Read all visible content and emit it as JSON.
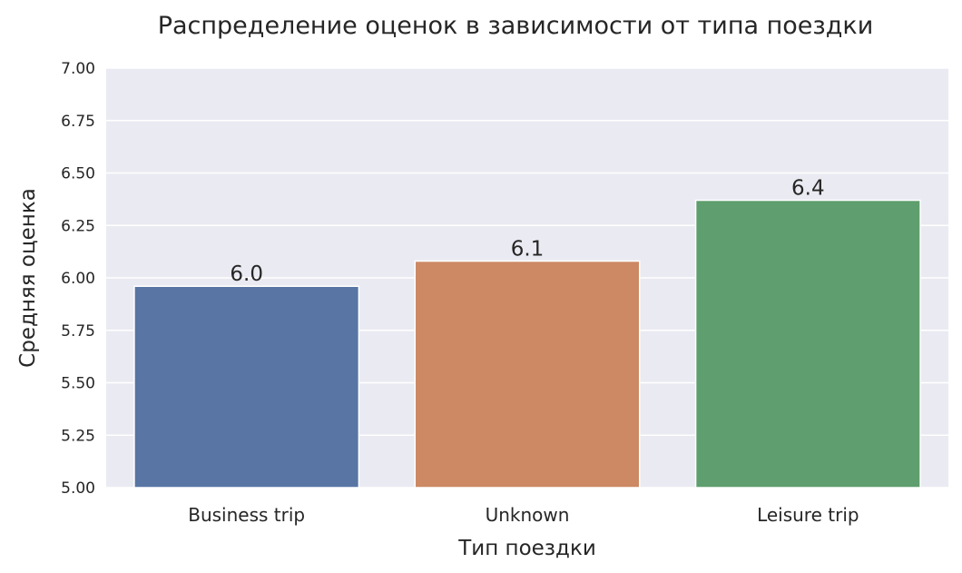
{
  "chart_data": {
    "type": "bar",
    "title": "Распределение оценок в зависимости от типа поездки",
    "xlabel": "Тип поездки",
    "ylabel": "Средняя оценка",
    "categories": [
      "Business trip",
      "Unknown",
      "Leisure trip"
    ],
    "values": [
      5.96,
      6.08,
      6.37
    ],
    "data_labels": [
      "6.0",
      "6.1",
      "6.4"
    ],
    "colors": [
      "#5875a4",
      "#cc8963",
      "#5f9e6e"
    ],
    "ylim": [
      5.0,
      7.0
    ],
    "yticks": [
      5.0,
      5.25,
      5.5,
      5.75,
      6.0,
      6.25,
      6.5,
      6.75,
      7.0
    ],
    "ytick_labels": [
      "5.00",
      "5.25",
      "5.50",
      "5.75",
      "6.00",
      "6.25",
      "6.50",
      "6.75",
      "7.00"
    ],
    "grid": true,
    "plot_background": "#eaeaf2",
    "grid_color": "#ffffff"
  }
}
